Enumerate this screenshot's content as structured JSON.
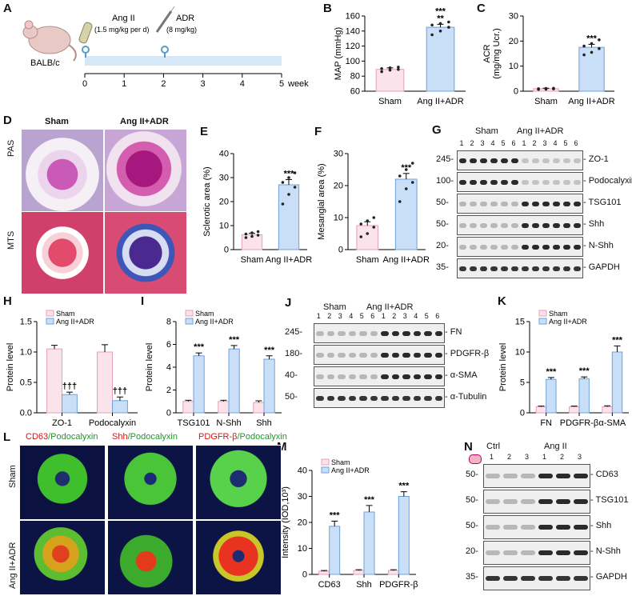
{
  "panel_labels": {
    "A": "A",
    "B": "B",
    "C": "C",
    "D": "D",
    "E": "E",
    "F": "F",
    "G": "G",
    "H": "H",
    "I": "I",
    "J": "J",
    "K": "K",
    "L": "L",
    "M": "M",
    "N": "N"
  },
  "colors": {
    "sham": "#fbe3ec",
    "treat": "#c9dff7",
    "sham_edge": "#e6a0b8",
    "treat_edge": "#6fa0d8",
    "dot": "#222"
  },
  "panelA": {
    "mouse": "BALB/c",
    "drug1": "Ang II",
    "dose1": "(1.5 mg/kg per d)",
    "drug2": "ADR",
    "dose2": "(8 mg/kg)",
    "ticks": [
      "0",
      "1",
      "2",
      "3",
      "4",
      "5"
    ],
    "unit": "week"
  },
  "panelD": {
    "col1": "Sham",
    "col2": "Ang II+ADR",
    "row1": "PAS",
    "row2": "MTS"
  },
  "panelG": {
    "group1": "Sham",
    "group2": "Ang II+ADR",
    "lanes": [
      "1",
      "2",
      "3",
      "4",
      "5",
      "6",
      "1",
      "2",
      "3",
      "4",
      "5",
      "6"
    ],
    "rows": [
      {
        "mw": "245",
        "name": "ZO-1"
      },
      {
        "mw": "100",
        "name": "Podocalyxin"
      },
      {
        "mw": "50",
        "name": "TSG101"
      },
      {
        "mw": "50",
        "name": "Shh"
      },
      {
        "mw": "20",
        "name": "N-Shh"
      },
      {
        "mw": "35",
        "name": "GAPDH"
      }
    ]
  },
  "panelJ": {
    "group1": "Sham",
    "group2": "Ang II+ADR",
    "lanes": [
      "1",
      "2",
      "3",
      "4",
      "5",
      "6",
      "1",
      "2",
      "3",
      "4",
      "5",
      "6"
    ],
    "rows": [
      {
        "mw": "245",
        "name": "FN"
      },
      {
        "mw": "180",
        "name": "PDGFR-β"
      },
      {
        "mw": "40",
        "name": "α-SMA"
      },
      {
        "mw": "50",
        "name": "α-Tubulin"
      }
    ]
  },
  "panelL": {
    "titles": [
      {
        "red": "CD63",
        "green": "/Podocalyxin"
      },
      {
        "red": "Shh",
        "green": "/Podocalyxin"
      },
      {
        "red": "PDGFR-β",
        "green": "/Podocalyxin"
      }
    ],
    "row1": "Sham",
    "row2": "Ang II+ADR"
  },
  "panelN": {
    "group1": "Ctrl",
    "group2": "Ang II",
    "lanes": [
      "1",
      "2",
      "3",
      "1",
      "2",
      "3"
    ],
    "rows": [
      {
        "mw": "50",
        "name": "CD63"
      },
      {
        "mw": "50",
        "name": "TSG101"
      },
      {
        "mw": "50",
        "name": "Shh"
      },
      {
        "mw": "20",
        "name": "N-Shh"
      },
      {
        "mw": "35",
        "name": "GAPDH"
      }
    ]
  },
  "chart_data": [
    {
      "id": "B",
      "type": "bar",
      "ylabel": "MAP (mmHg)",
      "ylim": [
        60,
        160
      ],
      "yticks": [
        60,
        80,
        100,
        120,
        140,
        160
      ],
      "categories": [
        "Sham",
        "Ang II+ADR"
      ],
      "values": [
        89,
        145
      ],
      "err": [
        2,
        4
      ],
      "sig": [
        "",
        "***\n**"
      ],
      "points": [
        [
          86,
          88,
          89,
          90,
          91,
          92
        ],
        [
          135,
          140,
          145,
          148,
          150,
          152
        ]
      ]
    },
    {
      "id": "C",
      "type": "bar",
      "ylabel": "ACR\n(mg/mg Ucr.)",
      "ylim": [
        0,
        30
      ],
      "yticks": [
        0,
        10,
        20,
        30
      ],
      "categories": [
        "Sham",
        "Ang II+ADR"
      ],
      "values": [
        1,
        17.5
      ],
      "err": [
        0.2,
        1.2
      ],
      "sig": [
        "",
        "***"
      ],
      "points": [
        [
          0.7,
          0.8,
          0.9,
          1.0,
          1.1,
          1.2
        ],
        [
          14.5,
          15.5,
          17,
          18,
          19,
          20.5
        ]
      ]
    },
    {
      "id": "E",
      "type": "bar",
      "ylabel": "Sclerotic area (%)",
      "ylim": [
        0,
        40
      ],
      "yticks": [
        0,
        10,
        20,
        30,
        40
      ],
      "categories": [
        "Sham",
        "Ang II+ADR"
      ],
      "values": [
        6.2,
        27
      ],
      "err": [
        0.6,
        2.2
      ],
      "sig": [
        "",
        "***"
      ],
      "points": [
        [
          5,
          5.5,
          6,
          6.5,
          7,
          7.5
        ],
        [
          19,
          23,
          26,
          28,
          30,
          32
        ]
      ]
    },
    {
      "id": "F",
      "type": "bar",
      "ylabel": "Mesangial area (%)",
      "ylim": [
        0,
        30
      ],
      "yticks": [
        0,
        10,
        20,
        30
      ],
      "categories": [
        "Sham",
        "Ang II+ADR"
      ],
      "values": [
        7.5,
        22
      ],
      "err": [
        1.2,
        1.8
      ],
      "sig": [
        "",
        "***"
      ],
      "points": [
        [
          4,
          5,
          7,
          8,
          9,
          10
        ],
        [
          15,
          19,
          21,
          23,
          25,
          27
        ]
      ]
    },
    {
      "id": "H",
      "type": "bar",
      "ylabel": "Protein level",
      "ylim": [
        0,
        1.5
      ],
      "yticks": [
        0,
        0.5,
        1.0,
        1.5
      ],
      "categories": [
        "ZO-1",
        "Podocalyxin"
      ],
      "series": [
        {
          "name": "Sham",
          "values": [
            1.05,
            1.0
          ],
          "err": [
            0.06,
            0.12
          ]
        },
        {
          "name": "Ang II+ADR",
          "values": [
            0.3,
            0.2
          ],
          "err": [
            0.04,
            0.06
          ]
        }
      ],
      "sig": [
        "†††",
        "†††"
      ]
    },
    {
      "id": "I",
      "type": "bar",
      "ylabel": "Protein level",
      "ylim": [
        0,
        8
      ],
      "yticks": [
        0,
        2,
        4,
        6,
        8
      ],
      "categories": [
        "TSG101",
        "N-Shh",
        "Shh"
      ],
      "series": [
        {
          "name": "Sham",
          "values": [
            1.0,
            1.0,
            0.9
          ],
          "err": [
            0.1,
            0.1,
            0.15
          ]
        },
        {
          "name": "Ang II+ADR",
          "values": [
            5.0,
            5.6,
            4.7
          ],
          "err": [
            0.25,
            0.3,
            0.3
          ]
        }
      ],
      "sig": [
        "***",
        "***",
        "***"
      ]
    },
    {
      "id": "K",
      "type": "bar",
      "ylabel": "Protein level",
      "ylim": [
        0,
        15
      ],
      "yticks": [
        0,
        5,
        10,
        15
      ],
      "categories": [
        "FN",
        "PDGFR-β",
        "α-SMA"
      ],
      "series": [
        {
          "name": "Sham",
          "values": [
            1.0,
            1.0,
            1.0
          ],
          "err": [
            0.1,
            0.1,
            0.15
          ]
        },
        {
          "name": "Ang II+ADR",
          "values": [
            5.5,
            5.6,
            10
          ],
          "err": [
            0.3,
            0.3,
            1.0
          ]
        }
      ],
      "sig": [
        "***",
        "***",
        "***"
      ]
    },
    {
      "id": "M",
      "type": "bar",
      "ylabel": "Intensity (IOD,10³)",
      "ylim": [
        0,
        40
      ],
      "yticks": [
        0,
        10,
        20,
        30,
        40
      ],
      "categories": [
        "CD63",
        "Shh",
        "PDGFR-β"
      ],
      "series": [
        {
          "name": "Sham",
          "values": [
            1.2,
            1.5,
            1.5
          ],
          "err": [
            0.3,
            0.3,
            0.3
          ]
        },
        {
          "name": "Ang II+ADR",
          "values": [
            18.5,
            24,
            30
          ],
          "err": [
            2,
            2.5,
            1.8
          ]
        }
      ],
      "sig": [
        "***",
        "***",
        "***"
      ]
    }
  ]
}
